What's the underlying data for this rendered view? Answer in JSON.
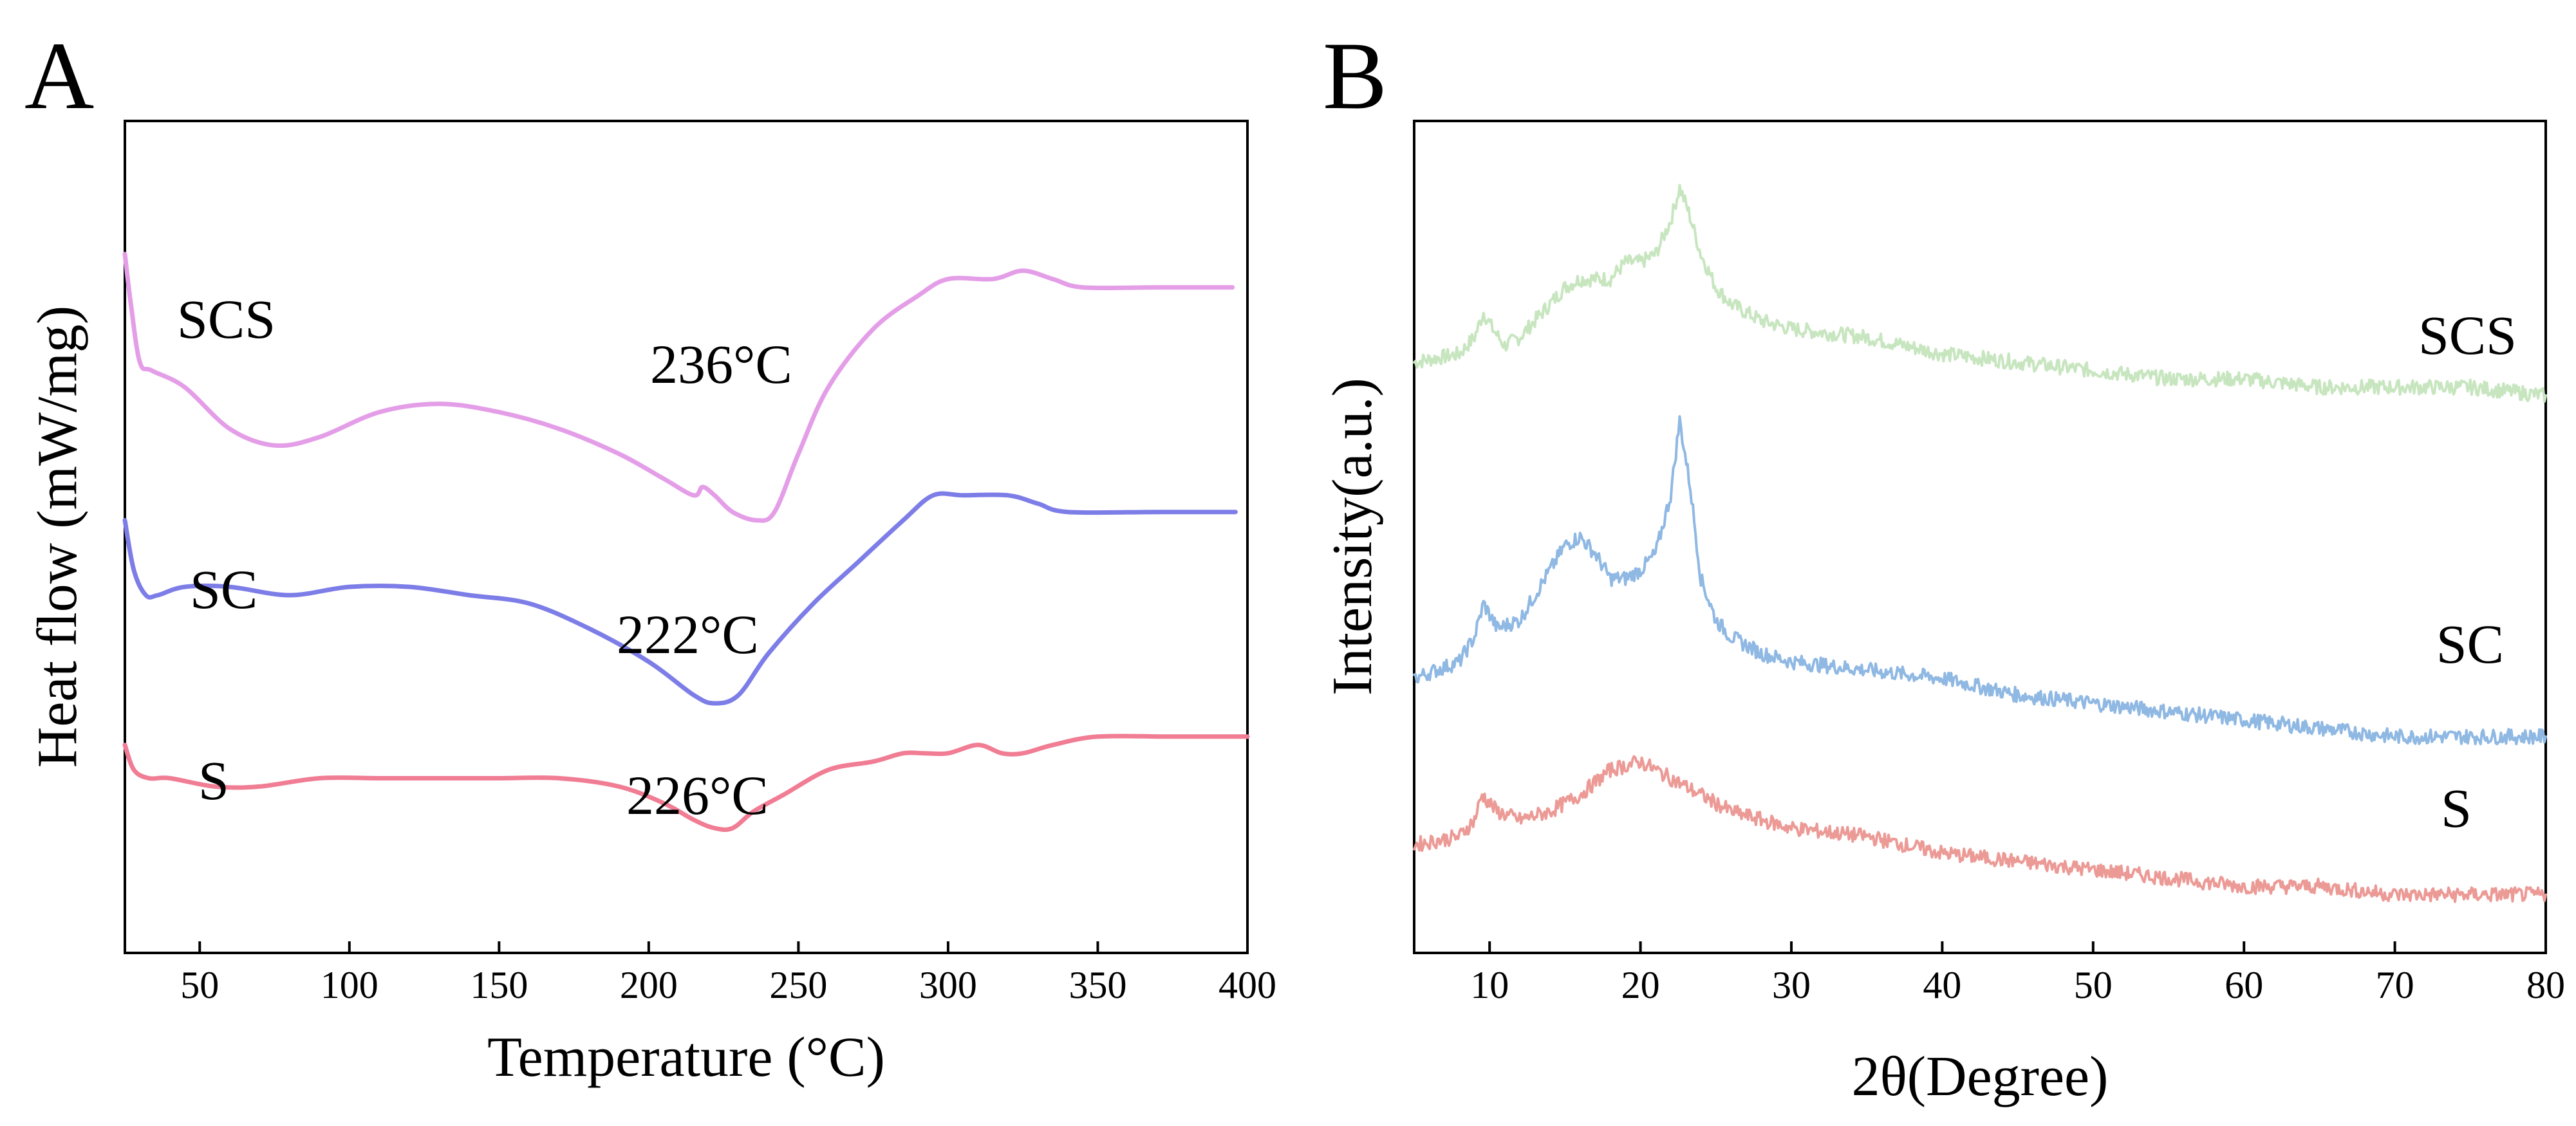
{
  "chart_data": [
    {
      "panel": "A",
      "type": "line",
      "xlabel": "Temperature (°C)",
      "ylabel": "Heat flow (mW/mg)",
      "xlim": [
        25,
        400
      ],
      "xticks": [
        50,
        100,
        150,
        200,
        250,
        300,
        350,
        400
      ],
      "y_ticks_shown": false,
      "grid": false,
      "series": [
        {
          "name": "SCS",
          "color": "#e49ee8",
          "peak_label": "236°C",
          "points": [
            [
              25,
              0.84
            ],
            [
              27,
              0.78
            ],
            [
              30,
              0.71
            ],
            [
              34,
              0.7
            ],
            [
              45,
              0.68
            ],
            [
              60,
              0.63
            ],
            [
              75,
              0.61
            ],
            [
              90,
              0.62
            ],
            [
              110,
              0.65
            ],
            [
              130,
              0.66
            ],
            [
              150,
              0.65
            ],
            [
              170,
              0.63
            ],
            [
              190,
              0.6
            ],
            [
              205,
              0.57
            ],
            [
              215,
              0.55
            ],
            [
              218,
              0.56
            ],
            [
              222,
              0.55
            ],
            [
              228,
              0.53
            ],
            [
              236,
              0.52
            ],
            [
              242,
              0.53
            ],
            [
              250,
              0.6
            ],
            [
              260,
              0.68
            ],
            [
              275,
              0.75
            ],
            [
              290,
              0.79
            ],
            [
              300,
              0.81
            ],
            [
              315,
              0.81
            ],
            [
              325,
              0.82
            ],
            [
              335,
              0.81
            ],
            [
              345,
              0.8
            ],
            [
              370,
              0.8
            ],
            [
              395,
              0.8
            ]
          ]
        },
        {
          "name": "SC",
          "color": "#7d7de8",
          "peak_label": "222°C",
          "points": [
            [
              25,
              0.52
            ],
            [
              28,
              0.46
            ],
            [
              32,
              0.43
            ],
            [
              36,
              0.43
            ],
            [
              45,
              0.44
            ],
            [
              60,
              0.44
            ],
            [
              80,
              0.43
            ],
            [
              100,
              0.44
            ],
            [
              120,
              0.44
            ],
            [
              140,
              0.43
            ],
            [
              160,
              0.42
            ],
            [
              180,
              0.39
            ],
            [
              200,
              0.35
            ],
            [
              215,
              0.31
            ],
            [
              222,
              0.3
            ],
            [
              230,
              0.31
            ],
            [
              240,
              0.36
            ],
            [
              255,
              0.42
            ],
            [
              270,
              0.47
            ],
            [
              285,
              0.52
            ],
            [
              295,
              0.55
            ],
            [
              305,
              0.55
            ],
            [
              320,
              0.55
            ],
            [
              330,
              0.54
            ],
            [
              340,
              0.53
            ],
            [
              370,
              0.53
            ],
            [
              396,
              0.53
            ]
          ]
        },
        {
          "name": "S",
          "color": "#f07d94",
          "peak_label": "226°C",
          "points": [
            [
              25,
              0.25
            ],
            [
              28,
              0.22
            ],
            [
              33,
              0.21
            ],
            [
              40,
              0.21
            ],
            [
              55,
              0.2
            ],
            [
              70,
              0.2
            ],
            [
              90,
              0.21
            ],
            [
              110,
              0.21
            ],
            [
              130,
              0.21
            ],
            [
              150,
              0.21
            ],
            [
              170,
              0.21
            ],
            [
              190,
              0.2
            ],
            [
              205,
              0.18
            ],
            [
              215,
              0.16
            ],
            [
              222,
              0.15
            ],
            [
              228,
              0.15
            ],
            [
              235,
              0.17
            ],
            [
              245,
              0.19
            ],
            [
              260,
              0.22
            ],
            [
              275,
              0.23
            ],
            [
              285,
              0.24
            ],
            [
              292,
              0.24
            ],
            [
              300,
              0.24
            ],
            [
              310,
              0.25
            ],
            [
              318,
              0.24
            ],
            [
              325,
              0.24
            ],
            [
              335,
              0.25
            ],
            [
              350,
              0.26
            ],
            [
              375,
              0.26
            ],
            [
              400,
              0.26
            ]
          ]
        }
      ]
    },
    {
      "panel": "B",
      "type": "line",
      "xlabel": "2θ(Degree)",
      "ylabel": "Intensity(a.u.)",
      "xlim": [
        5,
        80
      ],
      "xticks": [
        10,
        20,
        30,
        40,
        50,
        60,
        70,
        80
      ],
      "y_ticks_shown": false,
      "grid": false,
      "series": [
        {
          "name": "SCS",
          "color": "#c7e6bf",
          "points": [
            [
              5,
              0.71
            ],
            [
              8,
              0.72
            ],
            [
              9,
              0.74
            ],
            [
              9.6,
              0.77
            ],
            [
              10.2,
              0.75
            ],
            [
              11,
              0.73
            ],
            [
              12,
              0.74
            ],
            [
              13,
              0.76
            ],
            [
              14,
              0.78
            ],
            [
              15,
              0.8
            ],
            [
              16,
              0.81
            ],
            [
              17,
              0.81
            ],
            [
              18,
              0.81
            ],
            [
              19,
              0.83
            ],
            [
              20,
              0.83
            ],
            [
              21,
              0.84
            ],
            [
              22,
              0.88
            ],
            [
              22.6,
              0.92
            ],
            [
              23.2,
              0.89
            ],
            [
              24,
              0.84
            ],
            [
              25,
              0.8
            ],
            [
              26,
              0.78
            ],
            [
              28,
              0.76
            ],
            [
              30,
              0.75
            ],
            [
              35,
              0.74
            ],
            [
              40,
              0.72
            ],
            [
              45,
              0.71
            ],
            [
              50,
              0.7
            ],
            [
              55,
              0.69
            ],
            [
              60,
              0.69
            ],
            [
              65,
              0.68
            ],
            [
              70,
              0.68
            ],
            [
              75,
              0.68
            ],
            [
              80,
              0.67
            ]
          ]
        },
        {
          "name": "SC",
          "color": "#8fb8e3",
          "points": [
            [
              5,
              0.33
            ],
            [
              8,
              0.35
            ],
            [
              9,
              0.38
            ],
            [
              9.6,
              0.42
            ],
            [
              10.5,
              0.39
            ],
            [
              12,
              0.4
            ],
            [
              13,
              0.43
            ],
            [
              14,
              0.46
            ],
            [
              15,
              0.49
            ],
            [
              16,
              0.5
            ],
            [
              17,
              0.48
            ],
            [
              18,
              0.45
            ],
            [
              19,
              0.45
            ],
            [
              20,
              0.46
            ],
            [
              21,
              0.48
            ],
            [
              22,
              0.55
            ],
            [
              22.6,
              0.64
            ],
            [
              23.3,
              0.56
            ],
            [
              24,
              0.45
            ],
            [
              25,
              0.4
            ],
            [
              26,
              0.38
            ],
            [
              28,
              0.36
            ],
            [
              30,
              0.35
            ],
            [
              35,
              0.34
            ],
            [
              40,
              0.33
            ],
            [
              45,
              0.31
            ],
            [
              50,
              0.3
            ],
            [
              55,
              0.29
            ],
            [
              60,
              0.28
            ],
            [
              65,
              0.27
            ],
            [
              70,
              0.26
            ],
            [
              75,
              0.26
            ],
            [
              80,
              0.26
            ]
          ]
        },
        {
          "name": "S",
          "color": "#ec9a96",
          "points": [
            [
              5,
              0.13
            ],
            [
              8,
              0.14
            ],
            [
              9,
              0.16
            ],
            [
              9.5,
              0.19
            ],
            [
              10.5,
              0.17
            ],
            [
              12,
              0.16
            ],
            [
              14,
              0.17
            ],
            [
              16,
              0.19
            ],
            [
              18,
              0.22
            ],
            [
              20,
              0.23
            ],
            [
              22,
              0.21
            ],
            [
              24,
              0.19
            ],
            [
              26,
              0.17
            ],
            [
              28,
              0.16
            ],
            [
              30,
              0.15
            ],
            [
              35,
              0.14
            ],
            [
              40,
              0.12
            ],
            [
              45,
              0.11
            ],
            [
              50,
              0.1
            ],
            [
              55,
              0.09
            ],
            [
              60,
              0.08
            ],
            [
              65,
              0.08
            ],
            [
              70,
              0.07
            ],
            [
              75,
              0.07
            ],
            [
              80,
              0.07
            ]
          ]
        }
      ]
    }
  ]
}
